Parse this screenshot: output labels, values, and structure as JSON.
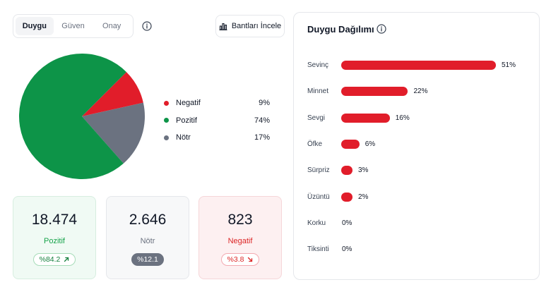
{
  "tabs": [
    {
      "label": "Duygu",
      "active": true
    },
    {
      "label": "Güven",
      "active": false
    },
    {
      "label": "Onay",
      "active": false
    }
  ],
  "bands_button": {
    "label": "Bantları İncele",
    "icon": "bar-chart-icon"
  },
  "pie": {
    "segments": [
      {
        "label": "Negatif",
        "percent": 9,
        "color": "#e11d2a"
      },
      {
        "label": "Pozitif",
        "percent": 74,
        "color": "#0d9448"
      },
      {
        "label": "Nötr",
        "percent": 17,
        "color": "#6b7280"
      }
    ],
    "legend": [
      {
        "label": "Negatif",
        "value": "9%",
        "color": "#e11d2a"
      },
      {
        "label": "Pozitif",
        "value": "74%",
        "color": "#0d9448"
      },
      {
        "label": "Nötr",
        "value": "17%",
        "color": "#6b7280"
      }
    ]
  },
  "cards": [
    {
      "number": "18.474",
      "label": "Pozitif",
      "badge": "%84.2",
      "trend": "up"
    },
    {
      "number": "2.646",
      "label": "Nötr",
      "badge": "%12.1",
      "trend": "none"
    },
    {
      "number": "823",
      "label": "Negatif",
      "badge": "%3.8",
      "trend": "down"
    }
  ],
  "panel": {
    "title": "Duygu Dağılımı"
  },
  "chart_data": {
    "type": "bar",
    "title": "Duygu Dağılımı",
    "categories": [
      "Sevinç",
      "Minnet",
      "Sevgi",
      "Öfke",
      "Sürpriz",
      "Üzüntü",
      "Korku",
      "Tiksinti"
    ],
    "values": [
      51,
      22,
      16,
      6,
      3,
      2,
      0,
      0
    ],
    "value_labels": [
      "51%",
      "22%",
      "16%",
      "6%",
      "3%",
      "2%",
      "0%",
      "0%"
    ],
    "orientation": "horizontal",
    "color": "#e11d2a",
    "xlim": [
      0,
      51
    ]
  },
  "colors": {
    "accent_red": "#e11d2a",
    "accent_green": "#0d9448",
    "neutral": "#6b7280"
  }
}
